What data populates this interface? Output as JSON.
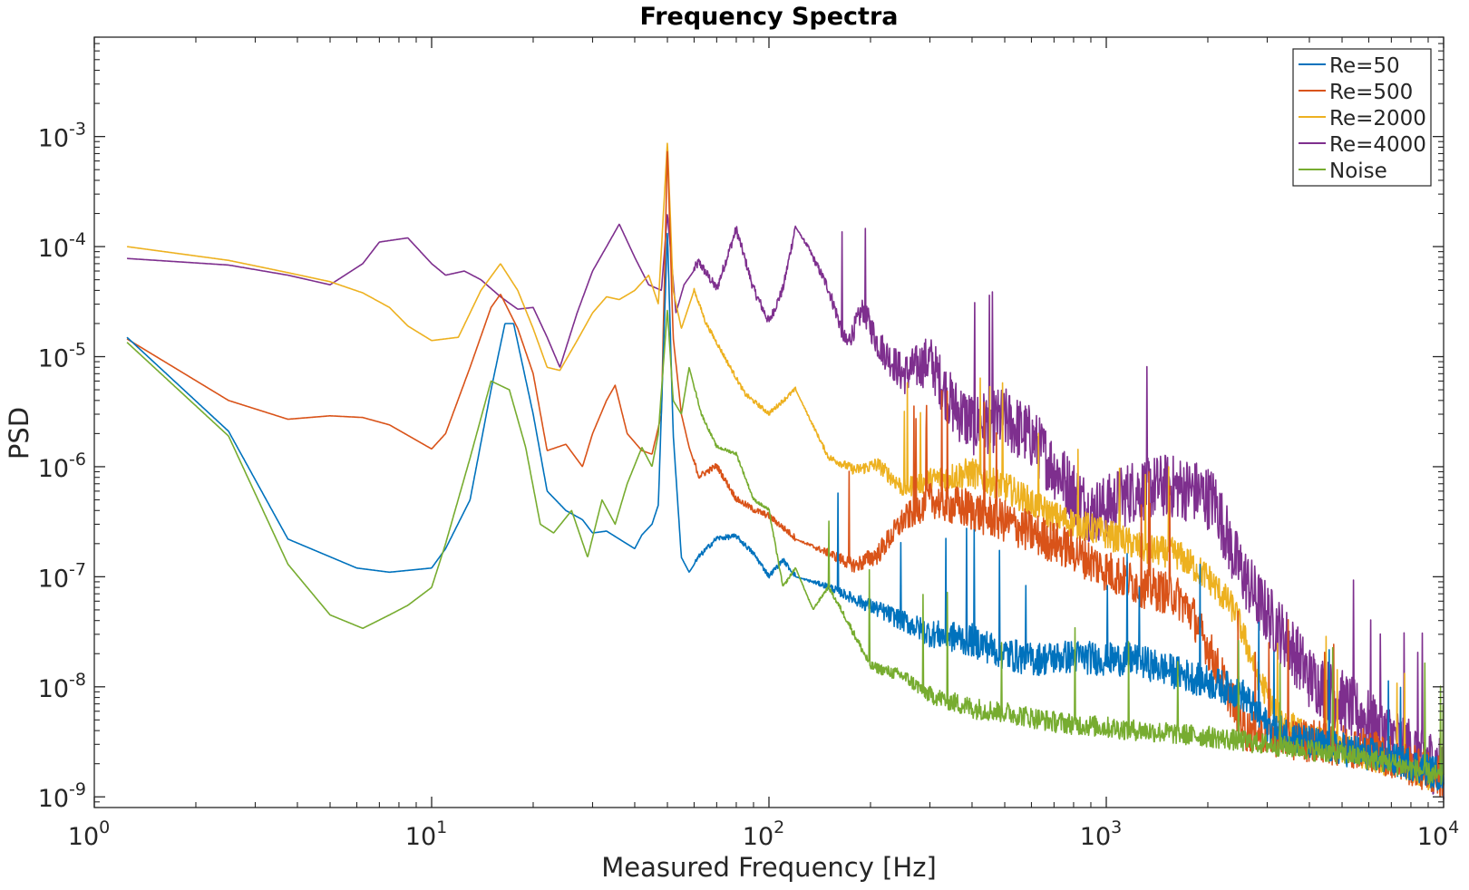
{
  "chart_data": {
    "type": "line",
    "title": "Frequency Spectra",
    "xlabel": "Measured Frequency [Hz]",
    "ylabel": "PSD",
    "xscale": "log",
    "yscale": "log",
    "xlim": [
      1,
      10000
    ],
    "ylim": [
      8e-10,
      0.008
    ],
    "grid": false,
    "legend_position": "top-right",
    "x_ticks": [
      {
        "value": 1,
        "base": "10",
        "exp": "0"
      },
      {
        "value": 10,
        "base": "10",
        "exp": "1"
      },
      {
        "value": 100,
        "base": "10",
        "exp": "2"
      },
      {
        "value": 1000,
        "base": "10",
        "exp": "3"
      },
      {
        "value": 10000,
        "base": "10",
        "exp": "4"
      }
    ],
    "y_ticks": [
      {
        "value": 1e-09,
        "base": "10",
        "exp": "-9"
      },
      {
        "value": 1e-08,
        "base": "10",
        "exp": "-8"
      },
      {
        "value": 1e-07,
        "base": "10",
        "exp": "-7"
      },
      {
        "value": 1e-06,
        "base": "10",
        "exp": "-6"
      },
      {
        "value": 1e-05,
        "base": "10",
        "exp": "-5"
      },
      {
        "value": 0.0001,
        "base": "10",
        "exp": "-4"
      },
      {
        "value": 0.001,
        "base": "10",
        "exp": "-3"
      }
    ],
    "series": [
      {
        "name": "Re=50",
        "color": "#0072BD",
        "points": [
          [
            1.25,
            1.5e-05
          ],
          [
            2.5,
            2.1e-06
          ],
          [
            3.75,
            2.2e-07
          ],
          [
            6,
            1.2e-07
          ],
          [
            7.5,
            1.1e-07
          ],
          [
            10,
            1.2e-07
          ],
          [
            11,
            1.8e-07
          ],
          [
            13,
            5e-07
          ],
          [
            15,
            5e-06
          ],
          [
            16.5,
            2e-05
          ],
          [
            17.5,
            2e-05
          ],
          [
            20,
            3e-06
          ],
          [
            22,
            6e-07
          ],
          [
            25,
            4e-07
          ],
          [
            28,
            3.3e-07
          ],
          [
            30,
            2.5e-07
          ],
          [
            33,
            2.6e-07
          ],
          [
            36,
            2.2e-07
          ],
          [
            40,
            1.8e-07
          ],
          [
            42,
            2.4e-07
          ],
          [
            45,
            3e-07
          ],
          [
            47,
            4.5e-07
          ],
          [
            50,
            0.00014
          ],
          [
            52,
            2e-06
          ],
          [
            55,
            1.5e-07
          ],
          [
            58,
            1.1e-07
          ],
          [
            62,
            1.5e-07
          ],
          [
            70,
            2.2e-07
          ],
          [
            80,
            2.3e-07
          ],
          [
            90,
            1.6e-07
          ],
          [
            100,
            1e-07
          ],
          [
            110,
            1.4e-07
          ],
          [
            120,
            1e-07
          ],
          [
            150,
            8e-08
          ],
          [
            180,
            6e-08
          ],
          [
            220,
            4.5e-08
          ],
          [
            260,
            3.5e-08
          ],
          [
            300,
            2.8e-08
          ],
          [
            400,
            2.4e-08
          ],
          [
            500,
            1.8e-08
          ],
          [
            600,
            1.6e-08
          ],
          [
            800,
            1.7e-08
          ],
          [
            1000,
            1.6e-08
          ],
          [
            1200,
            1.6e-08
          ],
          [
            1500,
            1.3e-08
          ],
          [
            2000,
            1e-08
          ],
          [
            2500,
            8e-09
          ],
          [
            3000,
            4e-09
          ],
          [
            4000,
            2.8e-09
          ],
          [
            6000,
            2.2e-09
          ],
          [
            8000,
            1.8e-09
          ],
          [
            10000,
            1.4e-09
          ]
        ],
        "noise": 0.22
      },
      {
        "name": "Re=500",
        "color": "#D95319",
        "points": [
          [
            1.25,
            1.45e-05
          ],
          [
            2.5,
            4e-06
          ],
          [
            3.75,
            2.7e-06
          ],
          [
            5,
            2.9e-06
          ],
          [
            6.25,
            2.8e-06
          ],
          [
            7.5,
            2.4e-06
          ],
          [
            10,
            1.45e-06
          ],
          [
            11,
            2e-06
          ],
          [
            13,
            8e-06
          ],
          [
            15,
            2.8e-05
          ],
          [
            16,
            3.7e-05
          ],
          [
            18,
            1.8e-05
          ],
          [
            20,
            7e-06
          ],
          [
            22,
            1.4e-06
          ],
          [
            25,
            1.6e-06
          ],
          [
            28,
            1e-06
          ],
          [
            30,
            2e-06
          ],
          [
            33,
            4e-06
          ],
          [
            35,
            5.5e-06
          ],
          [
            38,
            2e-06
          ],
          [
            42,
            1.4e-06
          ],
          [
            45,
            1.3e-06
          ],
          [
            48,
            3e-06
          ],
          [
            50,
            0.0008
          ],
          [
            52,
            1.5e-05
          ],
          [
            55,
            3e-06
          ],
          [
            58,
            1.5e-06
          ],
          [
            62,
            8e-07
          ],
          [
            70,
            1e-06
          ],
          [
            80,
            5e-07
          ],
          [
            90,
            4e-07
          ],
          [
            100,
            3.5e-07
          ],
          [
            120,
            2.2e-07
          ],
          [
            150,
            1.6e-07
          ],
          [
            180,
            1.2e-07
          ],
          [
            210,
            1.5e-07
          ],
          [
            250,
            3e-07
          ],
          [
            300,
            4.5e-07
          ],
          [
            400,
            3.5e-07
          ],
          [
            500,
            2.8e-07
          ],
          [
            600,
            2.2e-07
          ],
          [
            800,
            1.5e-07
          ],
          [
            1000,
            1e-07
          ],
          [
            1300,
            7e-08
          ],
          [
            1600,
            6e-08
          ],
          [
            1800,
            4e-08
          ],
          [
            2000,
            2e-08
          ],
          [
            2300,
            8e-09
          ],
          [
            2600,
            3.5e-09
          ],
          [
            3500,
            3e-09
          ],
          [
            6000,
            2.4e-09
          ],
          [
            10000,
            1.3e-09
          ]
        ],
        "noise": 0.28
      },
      {
        "name": "Re=2000",
        "color": "#EDB120",
        "points": [
          [
            1.25,
            0.0001
          ],
          [
            2.5,
            7.5e-05
          ],
          [
            3.75,
            5.8e-05
          ],
          [
            5,
            4.8e-05
          ],
          [
            6.25,
            3.8e-05
          ],
          [
            7.5,
            2.8e-05
          ],
          [
            8.5,
            1.9e-05
          ],
          [
            10,
            1.4e-05
          ],
          [
            12,
            1.5e-05
          ],
          [
            14,
            4e-05
          ],
          [
            16,
            7e-05
          ],
          [
            18,
            4e-05
          ],
          [
            20,
            1.8e-05
          ],
          [
            22,
            8e-06
          ],
          [
            24,
            7.5e-06
          ],
          [
            27,
            1.4e-05
          ],
          [
            30,
            2.5e-05
          ],
          [
            33,
            3.5e-05
          ],
          [
            36,
            3.3e-05
          ],
          [
            40,
            4e-05
          ],
          [
            44,
            5.5e-05
          ],
          [
            47,
            3e-05
          ],
          [
            50,
            0.0009
          ],
          [
            52,
            4e-05
          ],
          [
            55,
            1.8e-05
          ],
          [
            60,
            4e-05
          ],
          [
            65,
            2e-05
          ],
          [
            75,
            9e-06
          ],
          [
            85,
            4.5e-06
          ],
          [
            100,
            3e-06
          ],
          [
            120,
            5e-06
          ],
          [
            130,
            3e-06
          ],
          [
            150,
            1.2e-06
          ],
          [
            180,
            9e-07
          ],
          [
            210,
            1e-06
          ],
          [
            250,
            6e-07
          ],
          [
            300,
            7e-07
          ],
          [
            400,
            8e-07
          ],
          [
            500,
            6e-07
          ],
          [
            700,
            3.2e-07
          ],
          [
            900,
            2.5e-07
          ],
          [
            1100,
            2e-07
          ],
          [
            1300,
            1.6e-07
          ],
          [
            1600,
            1.5e-07
          ],
          [
            2000,
            9e-08
          ],
          [
            2400,
            4.5e-08
          ],
          [
            2800,
            1.2e-08
          ],
          [
            3200,
            5e-09
          ],
          [
            4000,
            3e-09
          ],
          [
            6000,
            2.2e-09
          ],
          [
            10000,
            1.3e-09
          ]
        ],
        "noise": 0.2
      },
      {
        "name": "Re=4000",
        "color": "#7E2F8E",
        "points": [
          [
            1.25,
            7.8e-05
          ],
          [
            2.5,
            6.8e-05
          ],
          [
            3.75,
            5.5e-05
          ],
          [
            5,
            4.5e-05
          ],
          [
            6.25,
            7e-05
          ],
          [
            7,
            0.00011
          ],
          [
            8.5,
            0.00012
          ],
          [
            10,
            7e-05
          ],
          [
            11,
            5.5e-05
          ],
          [
            12.5,
            6e-05
          ],
          [
            14,
            5e-05
          ],
          [
            16,
            3.5e-05
          ],
          [
            18,
            2.7e-05
          ],
          [
            20,
            2.8e-05
          ],
          [
            22,
            1.5e-05
          ],
          [
            24,
            8e-06
          ],
          [
            27,
            2.5e-05
          ],
          [
            30,
            6e-05
          ],
          [
            33,
            0.0001
          ],
          [
            36,
            0.00016
          ],
          [
            40,
            8e-05
          ],
          [
            44,
            4.5e-05
          ],
          [
            48,
            4e-05
          ],
          [
            50,
            0.0002
          ],
          [
            53,
            2.5e-05
          ],
          [
            56,
            4.5e-05
          ],
          [
            62,
            7e-05
          ],
          [
            70,
            4e-05
          ],
          [
            80,
            0.00014
          ],
          [
            90,
            4e-05
          ],
          [
            100,
            2e-05
          ],
          [
            110,
            4e-05
          ],
          [
            120,
            0.00015
          ],
          [
            130,
            0.0001
          ],
          [
            150,
            4e-05
          ],
          [
            170,
            1.2e-05
          ],
          [
            190,
            2.5e-05
          ],
          [
            210,
            1.2e-05
          ],
          [
            250,
            6e-06
          ],
          [
            300,
            8e-06
          ],
          [
            350,
            3e-06
          ],
          [
            400,
            2e-06
          ],
          [
            500,
            2.2e-06
          ],
          [
            600,
            1.5e-06
          ],
          [
            700,
            8e-07
          ],
          [
            900,
            3.2e-07
          ],
          [
            1000,
            3.5e-07
          ],
          [
            1200,
            5e-07
          ],
          [
            1500,
            5.5e-07
          ],
          [
            1800,
            5e-07
          ],
          [
            2100,
            4e-07
          ],
          [
            2400,
            1.2e-07
          ],
          [
            2800,
            5e-08
          ],
          [
            3500,
            2e-08
          ],
          [
            4000,
            1e-08
          ],
          [
            5000,
            6e-09
          ],
          [
            6000,
            4e-09
          ],
          [
            8000,
            2.2e-09
          ],
          [
            10000,
            1.5e-09
          ]
        ],
        "noise": 0.42
      },
      {
        "name": "Noise",
        "color": "#77AC30",
        "points": [
          [
            1.25,
            1.35e-05
          ],
          [
            2.5,
            1.9e-06
          ],
          [
            3.75,
            1.3e-07
          ],
          [
            5,
            4.5e-08
          ],
          [
            6.25,
            3.4e-08
          ],
          [
            7.5,
            4.5e-08
          ],
          [
            8.5,
            5.5e-08
          ],
          [
            10,
            8e-08
          ],
          [
            11,
            2e-07
          ],
          [
            13,
            1.2e-06
          ],
          [
            15,
            6e-06
          ],
          [
            17,
            5e-06
          ],
          [
            19,
            1.5e-06
          ],
          [
            21,
            3e-07
          ],
          [
            23,
            2.5e-07
          ],
          [
            26,
            4e-07
          ],
          [
            29,
            1.5e-07
          ],
          [
            32,
            5e-07
          ],
          [
            35,
            3e-07
          ],
          [
            38,
            7e-07
          ],
          [
            42,
            1.5e-06
          ],
          [
            45,
            1e-06
          ],
          [
            47,
            2e-06
          ],
          [
            50,
            2.7e-05
          ],
          [
            52,
            4e-06
          ],
          [
            55,
            3e-06
          ],
          [
            58,
            8e-06
          ],
          [
            63,
            3e-06
          ],
          [
            70,
            1.5e-06
          ],
          [
            80,
            1.3e-06
          ],
          [
            90,
            5e-07
          ],
          [
            100,
            4e-07
          ],
          [
            110,
            8e-08
          ],
          [
            120,
            1.2e-07
          ],
          [
            135,
            5e-08
          ],
          [
            150,
            8e-08
          ],
          [
            170,
            4e-08
          ],
          [
            200,
            1.5e-08
          ],
          [
            250,
            1.2e-08
          ],
          [
            300,
            8e-09
          ],
          [
            400,
            6e-09
          ],
          [
            500,
            5.5e-09
          ],
          [
            700,
            4.5e-09
          ],
          [
            1000,
            4e-09
          ],
          [
            2000,
            3.3e-09
          ],
          [
            3000,
            2.8e-09
          ],
          [
            5000,
            2.3e-09
          ],
          [
            7000,
            1.9e-09
          ],
          [
            10000,
            1.4e-09
          ]
        ],
        "noise": 0.14
      }
    ]
  }
}
